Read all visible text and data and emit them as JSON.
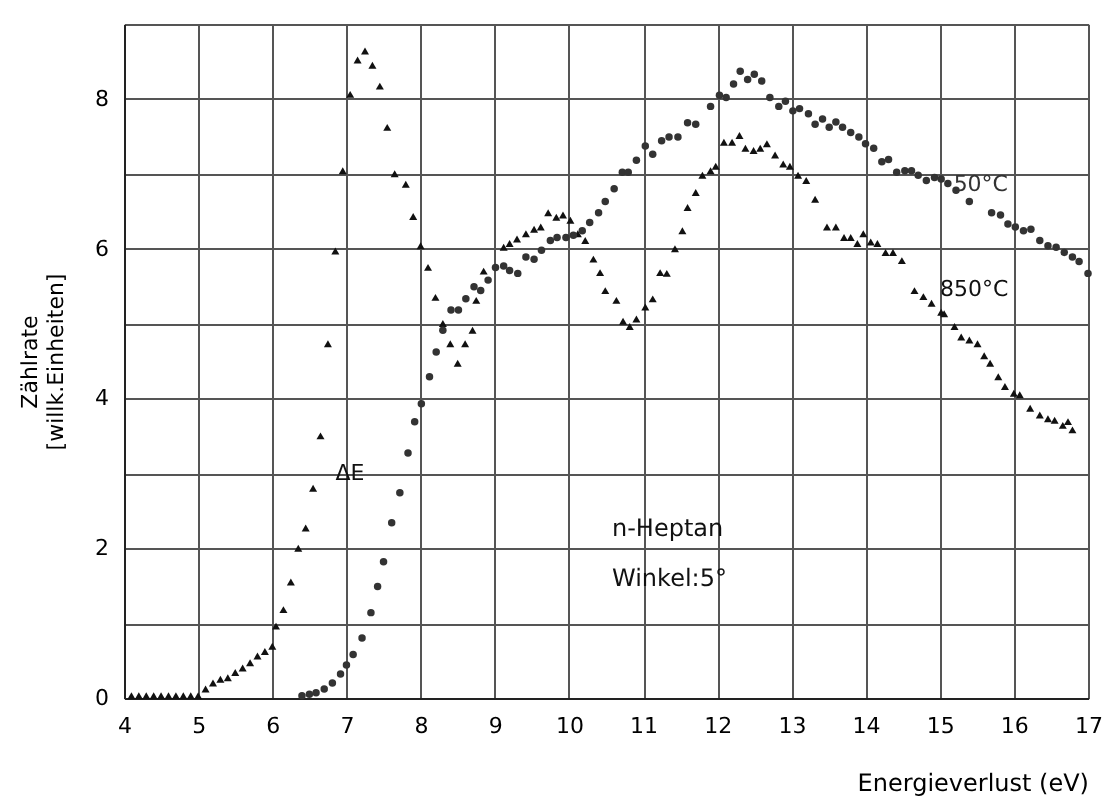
{
  "chart_data": {
    "type": "scatter",
    "xlabel": "Energieverlust (eV)",
    "ylabel": "Zählrate\n[willk.Einheiten]",
    "xlim": [
      4,
      17
    ],
    "xticks": [
      4,
      5,
      6,
      7,
      8,
      9,
      10,
      11,
      12,
      13,
      14,
      15,
      16,
      17
    ],
    "ylim": [
      0,
      9
    ],
    "yticks": [
      0,
      {
        "value": 1,
        "label": null
      },
      2,
      {
        "value": 3,
        "label": null
      },
      4,
      {
        "value": 5,
        "label": null
      },
      6,
      {
        "value": 7,
        "label": null
      },
      8,
      {
        "value": 9,
        "label": null
      }
    ],
    "grid": true,
    "legend": false,
    "annotations": [
      "ΔE",
      "n-Heptan",
      "Winkel:5°"
    ],
    "series": [
      {
        "name": "850°C",
        "color": "#111111",
        "marker": "triangle",
        "x": [
          4.1,
          4.2,
          4.3,
          4.4,
          4.5,
          4.6,
          4.7,
          4.8,
          4.9,
          5.0,
          5.1,
          5.2,
          5.3,
          5.4,
          5.5,
          5.6,
          5.7,
          5.8,
          5.9,
          6.0,
          6.05,
          6.15,
          6.25,
          6.35,
          6.45,
          6.55,
          6.65,
          6.75,
          6.85,
          6.95,
          7.05,
          7.15,
          7.25,
          7.35,
          7.45,
          7.55,
          7.65,
          7.8,
          7.9,
          8.0,
          8.1,
          8.2,
          8.3,
          8.4,
          8.5,
          8.6,
          8.7,
          8.75,
          8.85,
          9.12,
          9.2,
          9.3,
          9.42,
          9.53,
          9.62,
          9.72,
          9.83,
          9.92,
          10.02,
          10.12,
          10.22,
          10.33,
          10.42,
          10.49,
          10.64,
          10.73,
          10.82,
          10.91,
          11.03,
          11.13,
          11.23,
          11.32,
          11.43,
          11.53,
          11.6,
          11.71,
          11.8,
          11.91,
          11.98,
          12.09,
          12.2,
          12.3,
          12.38,
          12.49,
          12.58,
          12.67,
          12.78,
          12.89,
          12.98,
          13.09,
          13.2,
          13.32,
          13.48,
          13.6,
          13.71,
          13.8,
          13.89,
          13.97,
          14.07,
          14.16,
          14.27,
          14.37,
          14.49,
          14.66,
          14.78,
          14.89,
          15.02,
          15.06,
          15.2,
          15.29,
          15.4,
          15.51,
          15.6,
          15.68,
          15.79,
          15.88,
          16.0,
          16.08,
          16.22,
          16.35,
          16.46,
          16.55,
          16.66,
          16.73,
          16.79
        ],
        "values": [
          0.03,
          0.03,
          0.03,
          0.03,
          0.03,
          0.03,
          0.03,
          0.03,
          0.03,
          0.03,
          0.12,
          0.2,
          0.25,
          0.27,
          0.34,
          0.4,
          0.47,
          0.56,
          0.62,
          0.69,
          0.96,
          1.18,
          1.55,
          2.0,
          2.27,
          2.8,
          3.5,
          4.73,
          5.97,
          7.04,
          8.06,
          8.52,
          8.64,
          8.45,
          8.17,
          7.62,
          7.0,
          6.86,
          6.43,
          6.04,
          5.75,
          5.35,
          5.0,
          4.73,
          4.47,
          4.73,
          4.91,
          5.31,
          5.7,
          6.02,
          6.07,
          6.13,
          6.2,
          6.26,
          6.29,
          6.48,
          6.42,
          6.45,
          6.38,
          6.2,
          6.11,
          5.86,
          5.68,
          5.44,
          5.31,
          5.03,
          4.96,
          5.06,
          5.22,
          5.33,
          5.68,
          5.67,
          6.0,
          6.24,
          6.55,
          6.75,
          6.98,
          7.04,
          7.1,
          7.42,
          7.42,
          7.51,
          7.34,
          7.31,
          7.34,
          7.4,
          7.25,
          7.13,
          7.1,
          6.98,
          6.91,
          6.66,
          6.29,
          6.29,
          6.15,
          6.15,
          6.07,
          6.2,
          6.09,
          6.07,
          5.95,
          5.95,
          5.84,
          5.44,
          5.36,
          5.27,
          5.15,
          5.13,
          4.96,
          4.82,
          4.78,
          4.73,
          4.57,
          4.47,
          4.29,
          4.16,
          4.07,
          4.05,
          3.87,
          3.78,
          3.73,
          3.71,
          3.64,
          3.69,
          3.58
        ]
      },
      {
        "name": "50°C",
        "color": "#333333",
        "marker": "circle",
        "x": [
          6.4,
          6.5,
          6.59,
          6.7,
          6.81,
          6.92,
          7.0,
          7.09,
          7.21,
          7.33,
          7.42,
          7.5,
          7.61,
          7.72,
          7.83,
          7.92,
          8.01,
          8.12,
          8.21,
          8.3,
          8.41,
          8.51,
          8.61,
          8.72,
          8.81,
          8.91,
          9.01,
          9.12,
          9.2,
          9.31,
          9.42,
          9.53,
          9.63,
          9.75,
          9.84,
          9.96,
          10.06,
          10.18,
          10.28,
          10.4,
          10.49,
          10.61,
          10.72,
          10.8,
          10.91,
          11.03,
          11.13,
          11.25,
          11.35,
          11.47,
          11.6,
          11.71,
          11.91,
          12.03,
          12.12,
          12.22,
          12.31,
          12.41,
          12.5,
          12.6,
          12.71,
          12.83,
          12.92,
          13.02,
          13.11,
          13.23,
          13.32,
          13.42,
          13.51,
          13.6,
          13.69,
          13.8,
          13.91,
          14.0,
          14.11,
          14.22,
          14.31,
          14.42,
          14.53,
          14.62,
          14.71,
          14.82,
          14.93,
          15.02,
          15.11,
          15.22,
          15.4,
          15.7,
          15.82,
          15.92,
          16.02,
          16.13,
          16.23,
          16.35,
          16.46,
          16.57,
          16.68,
          16.79,
          16.88,
          17.0
        ],
        "values": [
          0.03,
          0.05,
          0.07,
          0.12,
          0.2,
          0.32,
          0.44,
          0.58,
          0.8,
          1.14,
          1.49,
          1.82,
          2.34,
          2.74,
          3.27,
          3.69,
          3.93,
          4.29,
          4.62,
          4.91,
          5.18,
          5.18,
          5.33,
          5.49,
          5.44,
          5.58,
          5.75,
          5.77,
          5.71,
          5.67,
          5.89,
          5.86,
          5.98,
          6.11,
          6.15,
          6.15,
          6.18,
          6.24,
          6.35,
          6.48,
          6.63,
          6.8,
          7.02,
          7.02,
          7.18,
          7.37,
          7.26,
          7.44,
          7.49,
          7.49,
          7.68,
          7.66,
          7.9,
          8.05,
          8.02,
          8.2,
          8.37,
          8.26,
          8.33,
          8.24,
          8.02,
          7.9,
          7.97,
          7.84,
          7.87,
          7.8,
          7.66,
          7.73,
          7.62,
          7.69,
          7.62,
          7.55,
          7.49,
          7.4,
          7.34,
          7.16,
          7.19,
          7.02,
          7.04,
          7.04,
          6.98,
          6.91,
          6.95,
          6.93,
          6.87,
          6.78,
          6.63,
          6.48,
          6.45,
          6.33,
          6.29,
          6.24,
          6.26,
          6.11,
          6.04,
          6.02,
          5.95,
          5.89,
          5.83,
          5.67
        ]
      }
    ]
  }
}
